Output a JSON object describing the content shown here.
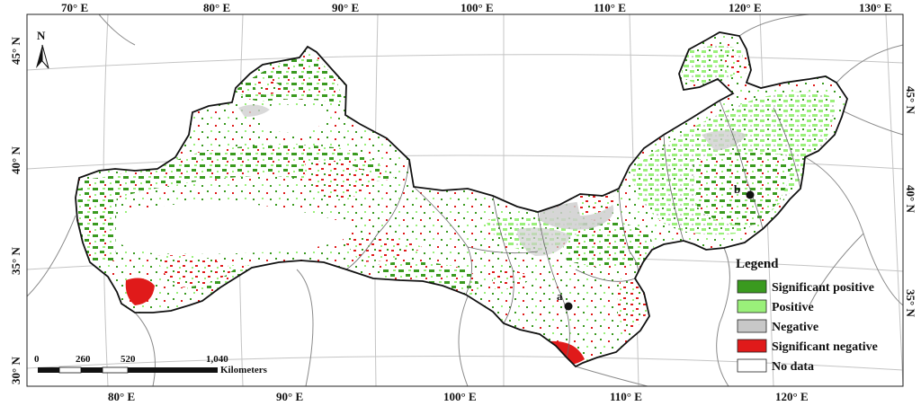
{
  "map": {
    "top_ticks": [
      "70° E",
      "80° E",
      "90° E",
      "100° E",
      "110° E",
      "120° E",
      "130° E"
    ],
    "bottom_ticks": [
      "80° E",
      "90° E",
      "100° E",
      "110° E",
      "120° E"
    ],
    "left_ticks": [
      "45° N",
      "40° N",
      "35° N",
      "30° N"
    ],
    "right_ticks": [
      "45° N",
      "40° N",
      "35° N"
    ],
    "north_label": "N",
    "sites": [
      {
        "label": "a"
      },
      {
        "label": "b"
      }
    ]
  },
  "legend": {
    "title": "Legend",
    "items": [
      {
        "label": "Significant positive",
        "color": "#3a9a1f"
      },
      {
        "label": "Positive",
        "color": "#9af07a"
      },
      {
        "label": "Negative",
        "color": "#c8c8c8"
      },
      {
        "label": "Significant negative",
        "color": "#e01a1a"
      },
      {
        "label": "No data",
        "color": "#ffffff"
      }
    ]
  },
  "scale_bar": {
    "ticks": [
      "0",
      "260",
      "520",
      "1,040"
    ],
    "unit": "Kilometers"
  }
}
